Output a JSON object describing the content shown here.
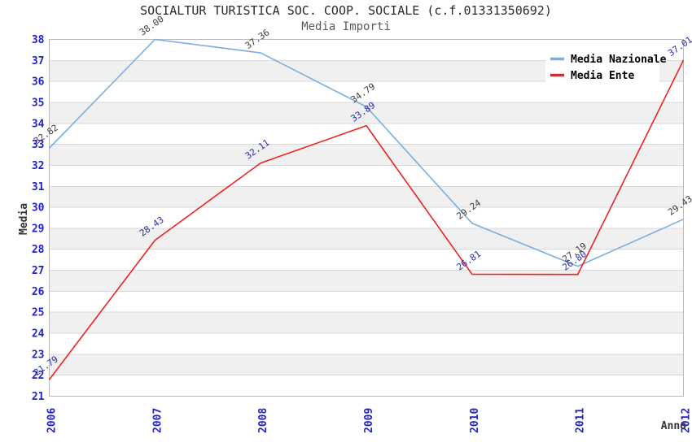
{
  "chart_data": {
    "type": "line",
    "title": "SOCIALTUR TURISTICA SOC. COOP. SOCIALE (c.f.01331350692)",
    "subtitle": "Media Importi",
    "xlabel": "Anno",
    "ylabel": "Media",
    "x": [
      "2006",
      "2007",
      "2008",
      "2009",
      "2010",
      "2011",
      "2012"
    ],
    "ylim": [
      21,
      38
    ],
    "ytick_step": 1,
    "grid": "horizontal-bands-alternating",
    "legend_position": "top-right",
    "series": [
      {
        "name": "Media Nazionale",
        "color": "#79aede",
        "label_color": "#3c3c3c",
        "values": [
          32.82,
          38.0,
          37.36,
          34.79,
          29.24,
          27.19,
          29.43
        ]
      },
      {
        "name": "Media Ente",
        "color": "#ee2222",
        "label_color": "#2a2ab0",
        "values": [
          21.79,
          28.43,
          32.11,
          33.89,
          26.81,
          26.8,
          37.01
        ]
      }
    ],
    "styles": {
      "tick_color": "#2222cc",
      "band_color": "#f0f0f0",
      "white_band_color": "#ffffff",
      "grid_color": "#d9d9d9",
      "border_color": "#b9b9b9",
      "axis_title_color": "#333333",
      "legend_text_color": "#000000",
      "legend_bg": "#ffffff",
      "background": "#ffffff"
    }
  }
}
